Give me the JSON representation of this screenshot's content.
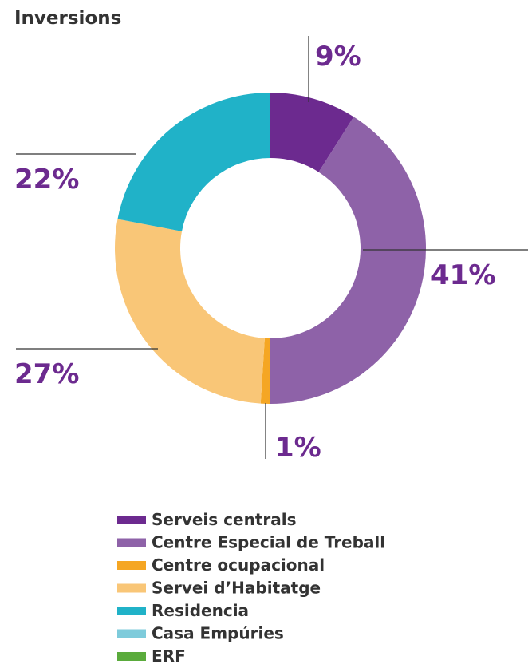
{
  "chart_data": {
    "type": "donut",
    "title": "Inversions",
    "categories": [
      "Serveis centrals",
      "Centre Especial de Treball",
      "Centre ocupacional",
      "Servei d’Habitatge",
      "Residencia",
      "Casa Empúries",
      "ERF"
    ],
    "values": [
      9,
      41,
      1,
      27,
      22,
      0,
      0
    ],
    "value_labels": [
      "9%",
      "41%",
      "1%",
      "27%",
      "22%",
      null,
      null
    ],
    "colors": [
      "#6c2a8f",
      "#8e62a8",
      "#f5a623",
      "#f9c677",
      "#20b2c8",
      "#7ecbdb",
      "#5aab3c"
    ]
  }
}
